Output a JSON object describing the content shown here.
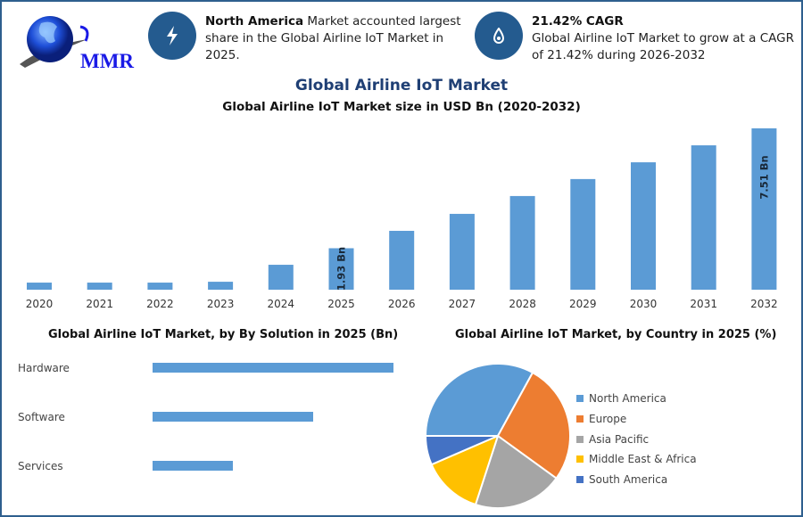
{
  "logo": {
    "text": "MMR"
  },
  "info_cards": [
    {
      "icon": "lightning-icon",
      "bold": "North America",
      "text": " Market accounted largest share in the Global Airline IoT Market in 2025."
    },
    {
      "icon": "flame-drop-icon",
      "bold": "21.42% CAGR",
      "text": "Global Airline IoT Market to grow at a CAGR of 21.42% during 2026-2032"
    }
  ],
  "colors": {
    "bar": "#5b9bd5",
    "accent": "#245b8f",
    "title": "#1f3f74"
  },
  "chart_data": [
    {
      "type": "bar",
      "title": "Global Airline IoT Market",
      "subtitle": "Global Airline IoT Market size in USD Bn (2020-2032)",
      "categories": [
        "2020",
        "2021",
        "2022",
        "2023",
        "2024",
        "2025",
        "2026",
        "2027",
        "2028",
        "2029",
        "2030",
        "2031",
        "2032"
      ],
      "values": [
        0.33,
        0.33,
        0.33,
        0.37,
        1.16,
        1.93,
        2.74,
        3.53,
        4.36,
        5.15,
        5.93,
        6.72,
        7.51
      ],
      "data_labels": {
        "2025": "1.93 Bn",
        "2032": "7.51 Bn"
      },
      "ylim": [
        0,
        7.51
      ],
      "grid": false
    },
    {
      "type": "bar",
      "orientation": "horizontal",
      "title": "Global Airline IoT Market, by By Solution in 2025 (Bn)",
      "categories": [
        "Hardware",
        "Software",
        "Services"
      ],
      "values": [
        0.96,
        0.64,
        0.32
      ],
      "grid": false
    },
    {
      "type": "pie",
      "title": "Global Airline IoT Market, by Country in 2025 (%)",
      "labels": [
        "North America",
        "Europe",
        "Asia Pacific",
        "Middle East & Africa",
        "South America"
      ],
      "values": [
        33,
        27,
        20,
        13.5,
        6.5
      ],
      "colors": [
        "#5b9bd5",
        "#ed7d31",
        "#a5a5a5",
        "#ffc000",
        "#4472c4"
      ],
      "legend": "right"
    }
  ]
}
